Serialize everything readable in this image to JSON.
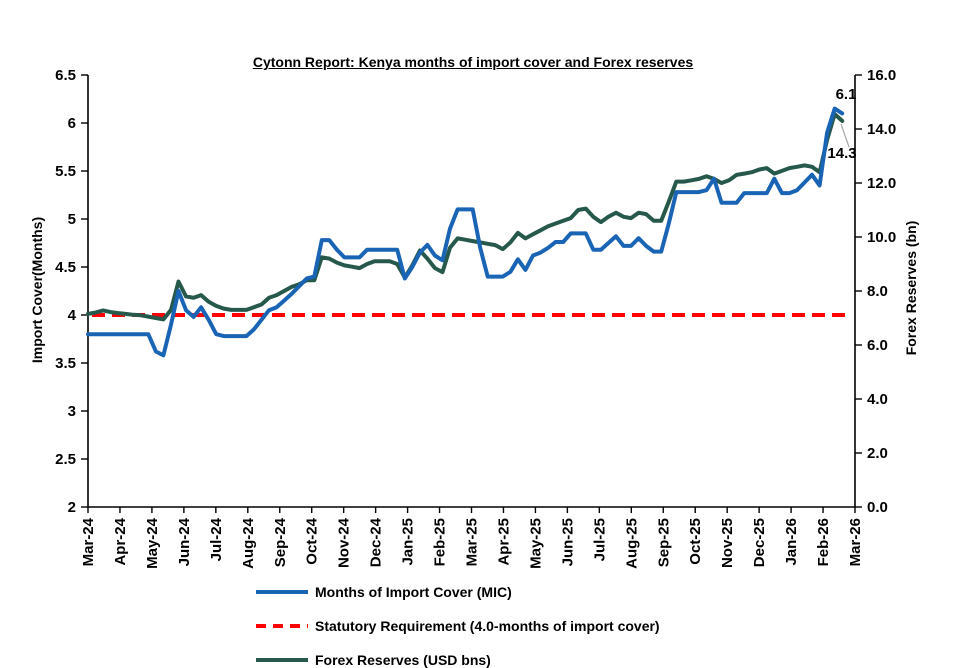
{
  "chart_data": {
    "type": "line",
    "title": "Cytonn Report: Kenya months of import cover and Forex reserves",
    "grid": false,
    "legend_position": "bottom",
    "left_axis": {
      "label": "Import Cover(Months)",
      "range": [
        2,
        6.5
      ],
      "tick_labels": [
        "2",
        "2.5",
        "3",
        "3.5",
        "4",
        "4.5",
        "5",
        "5.5",
        "6",
        "6.5"
      ],
      "tick_values": [
        2,
        2.5,
        3,
        3.5,
        4,
        4.5,
        5,
        5.5,
        6,
        6.5
      ]
    },
    "right_axis": {
      "label": "Forex Reserves (bn)",
      "range": [
        0,
        16
      ],
      "tick_labels": [
        "0.0",
        "2.0",
        "4.0",
        "6.0",
        "8.0",
        "10.0",
        "12.0",
        "14.0",
        "16.0"
      ],
      "tick_values": [
        0,
        2,
        4,
        6,
        8,
        10,
        12,
        14,
        16
      ]
    },
    "x_axis": {
      "range_months": [
        0,
        24
      ],
      "tick_labels": [
        "Mar-24",
        "Apr-24",
        "May-24",
        "Jun-24",
        "Jul-24",
        "Aug-24",
        "Sep-24",
        "Oct-24",
        "Nov-24",
        "Dec-24",
        "Jan-25",
        "Feb-25",
        "Mar-25",
        "Apr-25",
        "May-25",
        "Jun-25",
        "Jul-25",
        "Aug-25",
        "Sep-25",
        "Oct-25",
        "Nov-25",
        "Dec-25",
        "Jan-26",
        "Feb-26",
        "Mar-26"
      ]
    },
    "series": [
      {
        "name": "Months of Import Cover (MIC)",
        "axis": "left",
        "color": "#1A64B5",
        "style": "solid",
        "x_span_months": [
          0,
          23.6
        ],
        "values": [
          3.8,
          3.8,
          3.8,
          3.8,
          3.8,
          3.8,
          3.8,
          3.8,
          3.8,
          3.62,
          3.58,
          3.9,
          4.25,
          4.05,
          3.98,
          4.08,
          3.95,
          3.8,
          3.78,
          3.78,
          3.78,
          3.78,
          3.85,
          3.95,
          4.05,
          4.08,
          4.15,
          4.22,
          4.3,
          4.38,
          4.4,
          4.78,
          4.78,
          4.68,
          4.6,
          4.6,
          4.6,
          4.68,
          4.68,
          4.68,
          4.68,
          4.68,
          4.38,
          4.5,
          4.65,
          4.73,
          4.62,
          4.57,
          4.9,
          5.1,
          5.1,
          5.1,
          4.7,
          4.4,
          4.4,
          4.4,
          4.45,
          4.58,
          4.47,
          4.62,
          4.65,
          4.7,
          4.76,
          4.76,
          4.85,
          4.85,
          4.85,
          4.68,
          4.68,
          4.75,
          4.82,
          4.72,
          4.72,
          4.8,
          4.72,
          4.66,
          4.66,
          4.95,
          5.28,
          5.28,
          5.28,
          5.28,
          5.3,
          5.42,
          5.17,
          5.17,
          5.17,
          5.27,
          5.27,
          5.27,
          5.27,
          5.42,
          5.27,
          5.27,
          5.3,
          5.38,
          5.46,
          5.35,
          5.9,
          6.15,
          6.1
        ]
      },
      {
        "name": "Statutory Requirement (4.0-months of import cover)",
        "axis": "left",
        "color": "#FF0000",
        "style": "dashed",
        "value": 4.0
      },
      {
        "name": "Forex Reserves (USD bns)",
        "axis": "right",
        "color": "#26594B",
        "style": "solid",
        "x_span_months": [
          0,
          23.6
        ],
        "values": [
          7.15,
          7.2,
          7.28,
          7.22,
          7.18,
          7.15,
          7.12,
          7.1,
          7.05,
          7.0,
          6.95,
          7.3,
          8.35,
          7.8,
          7.75,
          7.85,
          7.6,
          7.45,
          7.35,
          7.3,
          7.3,
          7.3,
          7.4,
          7.5,
          7.75,
          7.85,
          8.0,
          8.15,
          8.25,
          8.4,
          8.4,
          9.25,
          9.2,
          9.05,
          8.95,
          8.9,
          8.85,
          9.0,
          9.1,
          9.1,
          9.1,
          9.0,
          8.5,
          8.95,
          9.5,
          9.2,
          8.85,
          8.7,
          9.6,
          9.95,
          9.9,
          9.85,
          9.8,
          9.75,
          9.7,
          9.55,
          9.8,
          10.15,
          9.95,
          10.1,
          10.25,
          10.4,
          10.5,
          10.6,
          10.7,
          11.0,
          11.05,
          10.75,
          10.55,
          10.75,
          10.9,
          10.75,
          10.7,
          10.9,
          10.85,
          10.6,
          10.6,
          11.3,
          12.05,
          12.05,
          12.1,
          12.15,
          12.25,
          12.15,
          12.0,
          12.1,
          12.3,
          12.35,
          12.4,
          12.5,
          12.55,
          12.35,
          12.45,
          12.55,
          12.6,
          12.65,
          12.6,
          12.4,
          13.6,
          14.55,
          14.3
        ]
      }
    ],
    "annotations": [
      {
        "text": "6.1",
        "series": "Months of Import Cover (MIC)"
      },
      {
        "text": "14.3",
        "series": "Forex Reserves (USD bns)"
      }
    ]
  }
}
